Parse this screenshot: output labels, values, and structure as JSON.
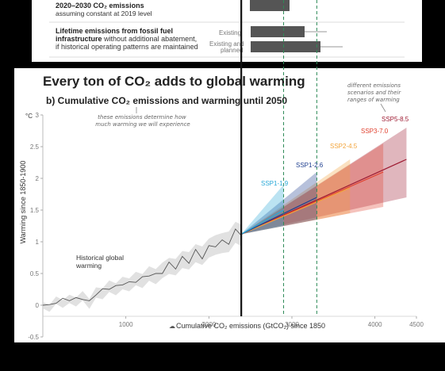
{
  "top_panel": {
    "row1": {
      "title": "2020–2030 CO₂ emissions",
      "subtitle": "assuming constant at 2019 level"
    },
    "row2": {
      "title_line1": "Lifetime emissions from fossil fuel",
      "title_line2_bold": "infrastructure",
      "title_line2_rest": " without additional abatement,",
      "title_line3": "if historical operating patterns are maintained",
      "bar_labels": [
        "Existing",
        "Existing and",
        "planned"
      ]
    }
  },
  "headline": "Every ton of CO₂ adds to global warming",
  "annotation_scenarios": [
    "different emissions",
    "scenarios and their",
    "ranges of warming"
  ],
  "annotation_emissions": [
    "these emissions determine how",
    "much warming we will experience"
  ],
  "historical_label": [
    "Historical global",
    "warming"
  ],
  "chart_data": {
    "type": "line",
    "title": "b) Cumulative CO₂ emissions and warming until 2050",
    "xlabel": "Cumulative CO₂ emissions (GtCO₂) since 1850",
    "ylabel": "Warming since 1850-1900",
    "y_unit": "°C",
    "xlim": [
      0,
      4500
    ],
    "ylim": [
      -0.5,
      3
    ],
    "x_ticks": [
      "1000",
      "2000",
      "3000",
      "4000",
      "4500"
    ],
    "y_ticks": [
      "-0.5",
      "0",
      "0.5",
      "1",
      "1.5",
      "2",
      "2.5",
      "3"
    ],
    "historical_end_x": 2390,
    "vertical_lines_x": [
      2390,
      2900,
      3300
    ],
    "series": [
      {
        "name": "SSP1-1.9",
        "color": "#2aa9d8",
        "end_x": 2900,
        "central_end_y": 1.5,
        "low_end_y": 1.25,
        "high_end_y": 1.9
      },
      {
        "name": "SSP1-2.6",
        "color": "#1f3f8f",
        "end_x": 3300,
        "central_end_y": 1.7,
        "low_end_y": 1.35,
        "high_end_y": 2.1
      },
      {
        "name": "SSP2-4.5",
        "color": "#f2a33a",
        "end_x": 3700,
        "central_end_y": 1.85,
        "low_end_y": 1.45,
        "high_end_y": 2.3
      },
      {
        "name": "SSP3-7.0",
        "color": "#e0412f",
        "end_x": 4100,
        "central_end_y": 2.1,
        "low_end_y": 1.55,
        "high_end_y": 2.55
      },
      {
        "name": "SSP5-8.5",
        "color": "#9e1b32",
        "end_x": 4380,
        "central_end_y": 2.3,
        "low_end_y": 1.7,
        "high_end_y": 2.8
      }
    ],
    "historical": {
      "x": [
        0,
        80,
        160,
        240,
        320,
        400,
        480,
        560,
        640,
        720,
        800,
        880,
        960,
        1040,
        1120,
        1200,
        1280,
        1360,
        1440,
        1520,
        1600,
        1680,
        1760,
        1840,
        1920,
        2000,
        2080,
        2160,
        2240,
        2320,
        2390
      ],
      "y": [
        0.0,
        -0.05,
        0.08,
        0.02,
        0.1,
        0.05,
        0.15,
        0.02,
        0.2,
        0.18,
        0.3,
        0.25,
        0.35,
        0.32,
        0.42,
        0.38,
        0.5,
        0.45,
        0.55,
        0.62,
        0.6,
        0.72,
        0.7,
        0.82,
        0.78,
        0.9,
        0.95,
        0.98,
        1.0,
        1.15,
        1.1
      ]
    }
  }
}
